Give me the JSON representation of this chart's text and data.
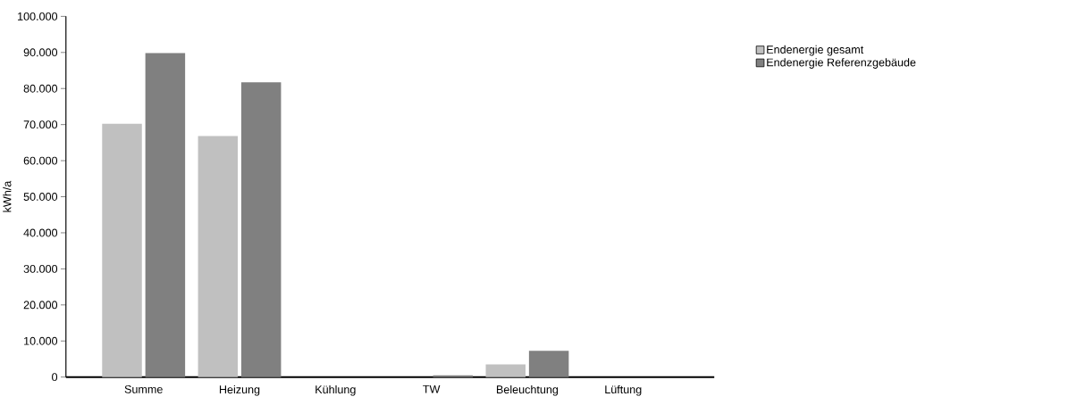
{
  "chart_data": {
    "type": "bar",
    "ylabel": "kWh/a",
    "categories": [
      "Summe",
      "Heizung",
      "Kühlung",
      "TW",
      "Beleuchtung",
      "Lüftung"
    ],
    "series": [
      {
        "name": "Endenergie gesamt",
        "color": "#c0c0c0",
        "values": [
          70200,
          66800,
          0,
          0,
          3500,
          0
        ]
      },
      {
        "name": "Endenergie Referenzgebäude",
        "color": "#808080",
        "values": [
          89800,
          81700,
          0,
          500,
          7300,
          0
        ]
      }
    ],
    "ylim": [
      0,
      100000
    ],
    "yticks": [
      {
        "value": 0,
        "label": "0"
      },
      {
        "value": 10000,
        "label": "10.000"
      },
      {
        "value": 20000,
        "label": "20.000"
      },
      {
        "value": 30000,
        "label": "30.000"
      },
      {
        "value": 40000,
        "label": "40.000"
      },
      {
        "value": 50000,
        "label": "50.000"
      },
      {
        "value": 60000,
        "label": "60.000"
      },
      {
        "value": 70000,
        "label": "70.000"
      },
      {
        "value": 80000,
        "label": "80.000"
      },
      {
        "value": 90000,
        "label": "90.000"
      },
      {
        "value": 100000,
        "label": "100.000"
      }
    ],
    "legend": "right"
  }
}
